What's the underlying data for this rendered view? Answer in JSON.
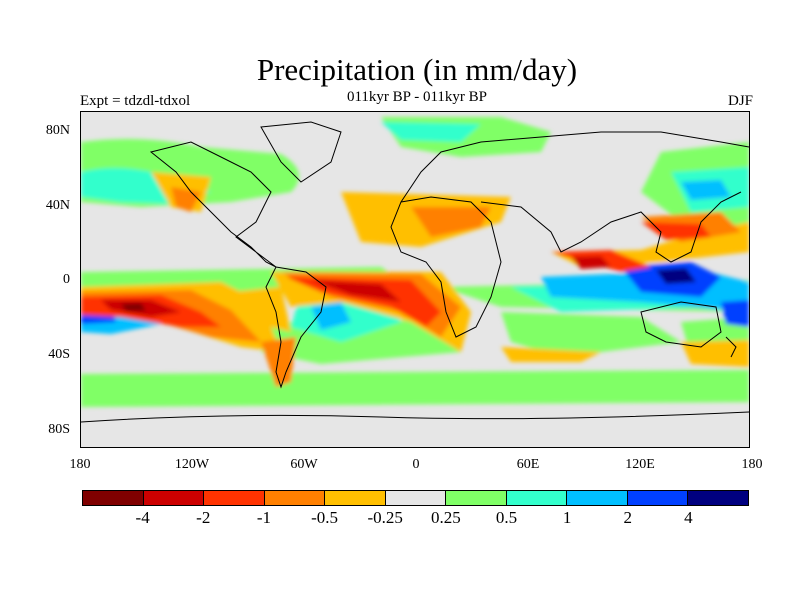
{
  "title": "Precipitation (in mm/day)",
  "subtitle_left": "Expt = tdzdl-tdxol",
  "subtitle_center": "011kyr BP - 011kyr BP",
  "subtitle_right": "DJF",
  "lat_labels": [
    "80N",
    "40N",
    "0",
    "40S",
    "80S"
  ],
  "lon_labels": [
    "180",
    "120W",
    "60W",
    "0",
    "60E",
    "120E",
    "180"
  ],
  "colorbar": {
    "colors": [
      "#800000",
      "#cc0000",
      "#ff3300",
      "#ff8000",
      "#ffbf00",
      "#e6e6e6",
      "#80ff66",
      "#33ffcc",
      "#00bfff",
      "#0040ff",
      "#000080"
    ],
    "labels": [
      "-4",
      "-2",
      "-1",
      "-0.5",
      "-0.25",
      "0.25",
      "0.5",
      "1",
      "2",
      "4"
    ]
  }
}
